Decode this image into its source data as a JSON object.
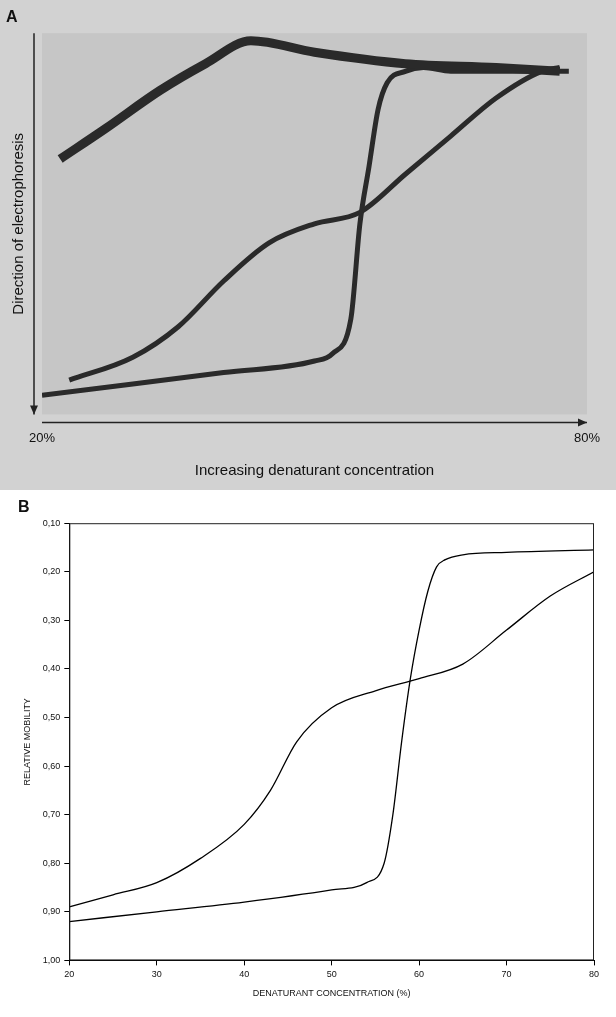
{
  "chart_data": [
    {
      "panel_label": "A",
      "type": "line",
      "x_label": "Increasing denaturant concentration",
      "y_label": "Direction of electrophoresis",
      "xlim": [
        20,
        80
      ],
      "xticks": [
        {
          "value": 20,
          "label": "20%"
        },
        {
          "value": 80,
          "label": "80%"
        }
      ],
      "ylim": [
        1,
        0
      ],
      "yticks": [],
      "tick_labels": "x",
      "grid": false,
      "series": [
        {
          "color": "#2a2a2a",
          "x": [
            22,
            27,
            33,
            38,
            43,
            50,
            60,
            70,
            77
          ],
          "values": [
            0.33,
            0.25,
            0.15,
            0.08,
            0.02,
            0.05,
            0.08,
            0.09,
            0.1
          ]
        },
        {
          "color": "#2a2a2a",
          "x": [
            20,
            30,
            40,
            50,
            52,
            54,
            55,
            56,
            57,
            58,
            60,
            62,
            65,
            72,
            78
          ],
          "values": [
            0.95,
            0.92,
            0.89,
            0.86,
            0.84,
            0.75,
            0.5,
            0.35,
            0.2,
            0.13,
            0.1,
            0.09,
            0.1,
            0.1,
            0.1
          ]
        },
        {
          "color": "#2a2a2a",
          "x": [
            23,
            30,
            35,
            40,
            45,
            50,
            55,
            60,
            65,
            70,
            75,
            77
          ],
          "values": [
            0.91,
            0.85,
            0.77,
            0.65,
            0.55,
            0.5,
            0.47,
            0.37,
            0.27,
            0.17,
            0.1,
            0.09
          ]
        }
      ]
    },
    {
      "panel_label": "B",
      "type": "line",
      "x_label": "DENATURANT CONCENTRATION (%)",
      "y_label": "RELATIVE MOBILITY",
      "xlim": [
        20,
        80
      ],
      "xticks": [
        20,
        30,
        40,
        50,
        60,
        70,
        80
      ],
      "ylim": [
        1.0,
        0.1
      ],
      "yticks": [
        {
          "value": 0.1,
          "label": "0,10"
        },
        {
          "value": 0.2,
          "label": "0,20"
        },
        {
          "value": 0.3,
          "label": "0,30"
        },
        {
          "value": 0.4,
          "label": "0,40"
        },
        {
          "value": 0.5,
          "label": "0,50"
        },
        {
          "value": 0.6,
          "label": "0,60"
        },
        {
          "value": 0.7,
          "label": "0,70"
        },
        {
          "value": 0.8,
          "label": "0,80"
        },
        {
          "value": 0.9,
          "label": "0,90"
        },
        {
          "value": 1.0,
          "label": "1,00"
        }
      ],
      "grid": false,
      "series": [
        {
          "color": "#000000",
          "x": [
            20,
            30,
            40,
            50,
            54,
            56,
            57,
            58,
            59,
            60,
            61,
            62,
            63,
            65,
            70,
            80
          ],
          "values": [
            0.92,
            0.9,
            0.88,
            0.855,
            0.84,
            0.8,
            0.7,
            0.55,
            0.42,
            0.32,
            0.24,
            0.19,
            0.175,
            0.165,
            0.16,
            0.155
          ]
        },
        {
          "color": "#000000",
          "x": [
            20,
            25,
            30,
            35,
            40,
            43,
            46,
            50,
            55,
            60,
            65,
            70,
            75,
            80
          ],
          "values": [
            0.89,
            0.865,
            0.84,
            0.79,
            0.72,
            0.65,
            0.55,
            0.48,
            0.445,
            0.42,
            0.39,
            0.32,
            0.25,
            0.2
          ]
        }
      ]
    }
  ]
}
